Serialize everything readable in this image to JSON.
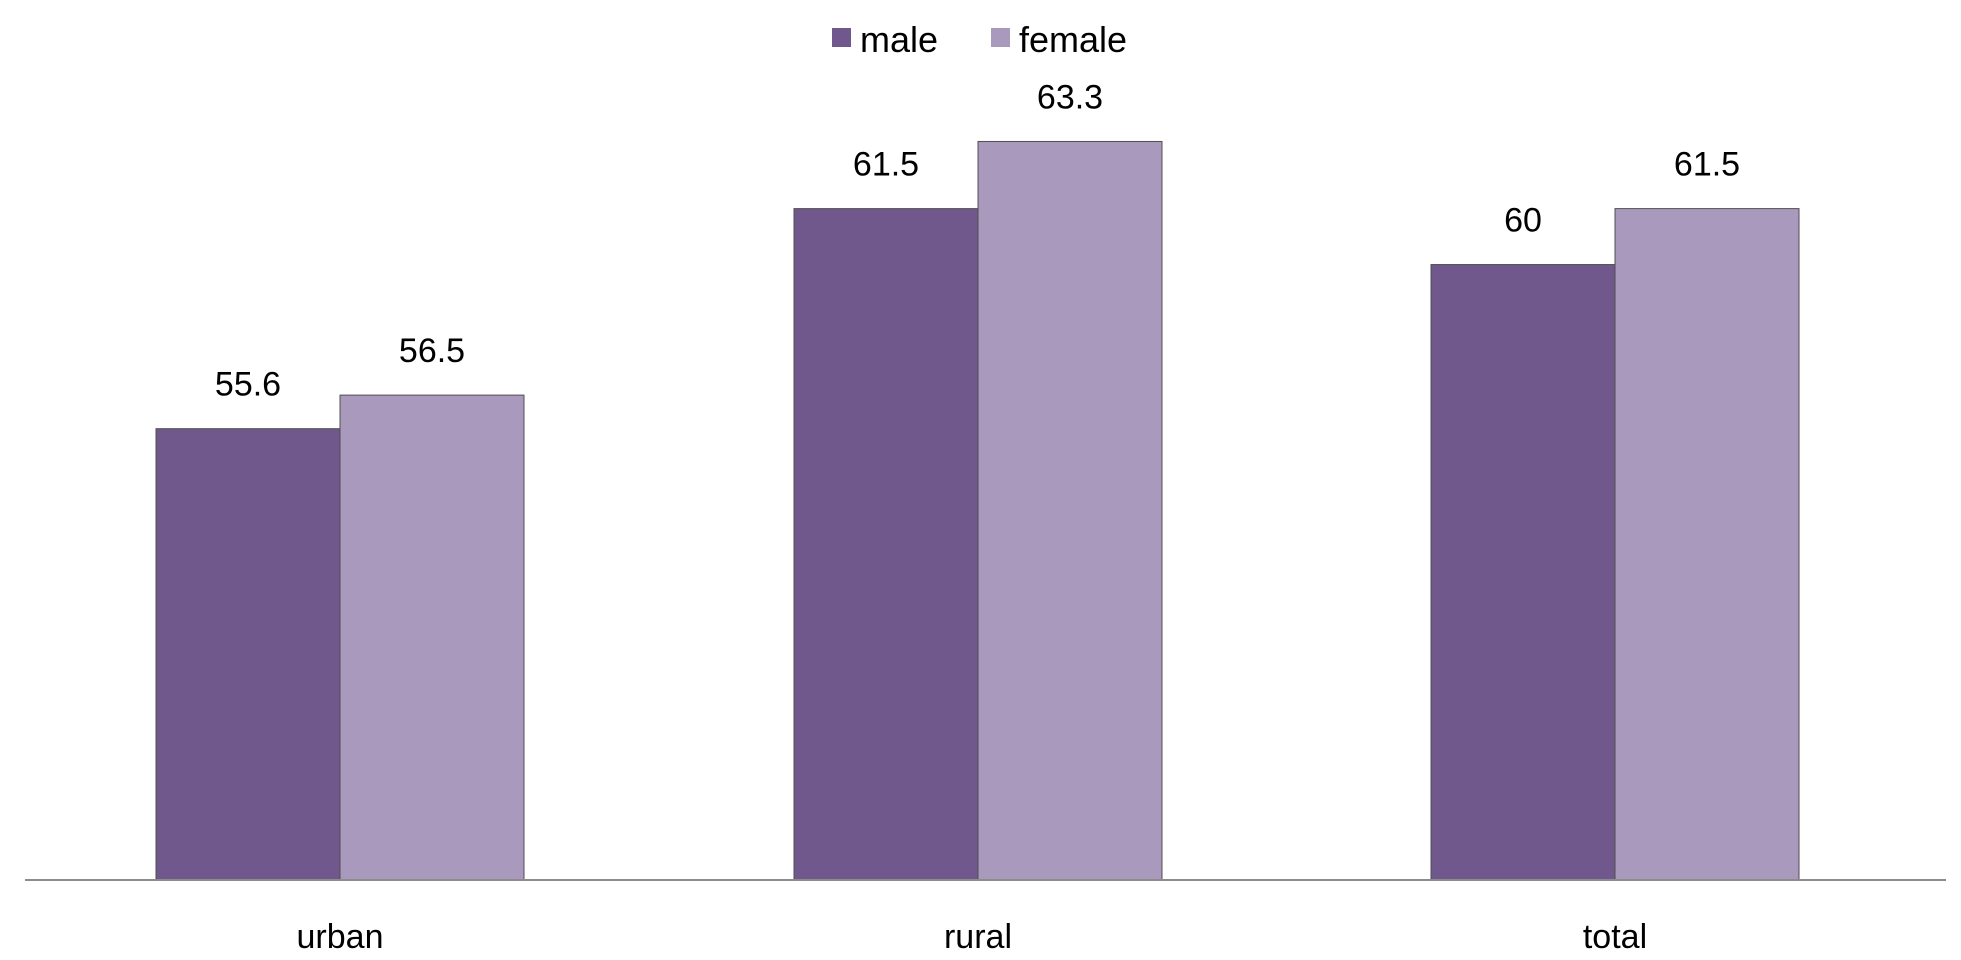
{
  "chart_data": {
    "type": "bar",
    "categories": [
      "urban",
      "rural",
      "total"
    ],
    "series": [
      {
        "name": "male",
        "values": [
          55.6,
          61.5,
          60
        ],
        "color": "#70578c"
      },
      {
        "name": "female",
        "values": [
          56.5,
          63.3,
          61.5
        ],
        "color": "#a899bd"
      }
    ],
    "data_labels": [
      [
        "55.6",
        "61.5",
        "60"
      ],
      [
        "56.5",
        "63.3",
        "61.5"
      ]
    ],
    "legend_position": "top-center",
    "grid": false,
    "title": "",
    "xlabel": "",
    "ylabel": "",
    "ylim": [
      43.5,
      64.8
    ],
    "colors": {
      "axis": "#8c8c8c",
      "bar_border": "#4f4f4f",
      "text": "#000000"
    }
  }
}
